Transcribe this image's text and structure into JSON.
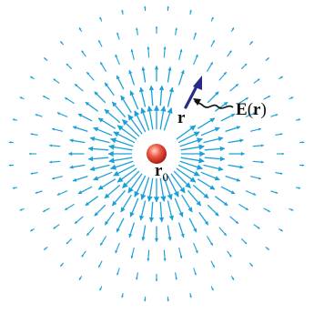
{
  "labels": {
    "source_point": "r",
    "source_subscript": "0",
    "field_point": "r",
    "field_name": "E",
    "field_arg": "r"
  },
  "colors": {
    "field_arrow": "#1aa0d8",
    "highlight_arrow": "#2a2a8a",
    "charge": "#e8392e",
    "pointer": "#111111"
  },
  "field": {
    "rings": 6,
    "arrows_per_ring": [
      40,
      40,
      40,
      40,
      40,
      40
    ]
  }
}
